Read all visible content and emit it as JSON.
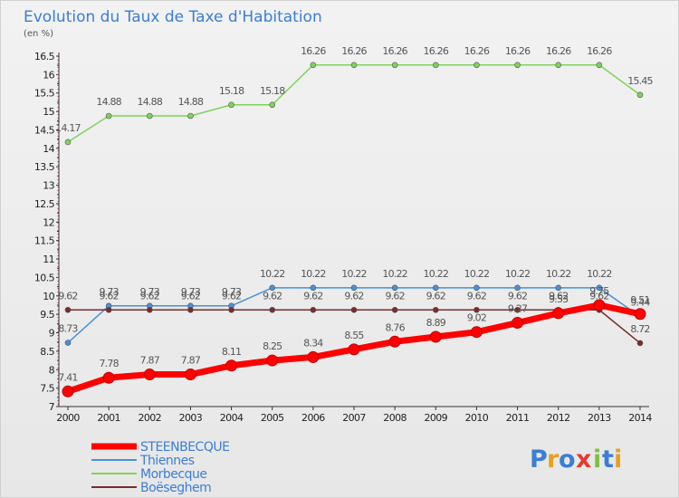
{
  "chart_data": {
    "type": "line",
    "title": "Evolution du Taux de Taxe d'Habitation",
    "subtitle": "(en %)",
    "x": [
      "2000",
      "2001",
      "2002",
      "2003",
      "2004",
      "2005",
      "2006",
      "2007",
      "2008",
      "2009",
      "2010",
      "2011",
      "2012",
      "2013",
      "2014"
    ],
    "ylim": [
      7,
      16.5
    ],
    "yticks": [
      "7",
      "7.5",
      "8",
      "8.5",
      "9",
      "9.5",
      "10",
      "10.5",
      "11",
      "11.5",
      "12",
      "12.5",
      "13",
      "13.5",
      "14",
      "14.5",
      "15",
      "15.5",
      "16",
      "16.5"
    ],
    "grid": false,
    "legend_position": "bottom-left",
    "series": [
      {
        "name": "STEENBECQUE",
        "color": "#ff0000",
        "values": [
          7.41,
          7.78,
          7.87,
          7.87,
          8.11,
          8.25,
          8.34,
          8.55,
          8.76,
          8.89,
          9.02,
          9.27,
          9.53,
          9.75,
          9.51
        ],
        "labels": [
          "7.41",
          "7.78",
          "7.87",
          "7.87",
          "8.11",
          "8.25",
          "8.34",
          "8.55",
          "8.76",
          "8.89",
          "9.02",
          "9.27",
          "9.53",
          "9.75",
          "9.51"
        ]
      },
      {
        "name": "Thiennes",
        "color": "#4a90d9",
        "values": [
          8.73,
          9.73,
          9.73,
          9.73,
          9.73,
          10.22,
          10.22,
          10.22,
          10.22,
          10.22,
          10.22,
          10.22,
          10.22,
          10.22,
          9.44
        ],
        "labels": [
          "8.73",
          "9.73",
          "9.73",
          "9.73",
          "9.73",
          "10.22",
          "10.22",
          "10.22",
          "10.22",
          "10.22",
          "10.22",
          "10.22",
          "10.22",
          "10.22",
          "9.44"
        ]
      },
      {
        "name": "Morbecque",
        "color": "#7fd35a",
        "values": [
          14.17,
          14.88,
          14.88,
          14.88,
          15.18,
          15.18,
          16.26,
          16.26,
          16.26,
          16.26,
          16.26,
          16.26,
          16.26,
          16.26,
          15.45
        ],
        "labels": [
          "14.17",
          "14.88",
          "14.88",
          "14.88",
          "15.18",
          "15.18",
          "16.26",
          "16.26",
          "16.26",
          "16.26",
          "16.26",
          "16.26",
          "16.26",
          "16.26",
          "15.45"
        ]
      },
      {
        "name": "Boëseghem",
        "color": "#7a2b2b",
        "values": [
          9.62,
          9.62,
          9.62,
          9.62,
          9.62,
          9.62,
          9.62,
          9.62,
          9.62,
          9.62,
          9.62,
          9.62,
          9.62,
          9.62,
          8.72
        ],
        "labels": [
          "9.62",
          "9.62",
          "9.62",
          "9.62",
          "9.62",
          "9.62",
          "9.62",
          "9.62",
          "9.62",
          "9.62",
          "9.62",
          "9.62",
          "9.62",
          "9.62",
          "8.72"
        ]
      }
    ]
  },
  "legend": [
    {
      "name": "STEENBECQUE",
      "color": "#ff0000"
    },
    {
      "name": "Thiennes",
      "color": "#4a90d9"
    },
    {
      "name": "Morbecque",
      "color": "#7fd35a"
    },
    {
      "name": "Boëseghem",
      "color": "#7a2b2b"
    }
  ],
  "brand": {
    "letters": [
      "P",
      "r",
      "o",
      "x",
      "i",
      "t",
      "i"
    ],
    "colors": [
      "#3a7ed6",
      "#e8a020",
      "#3a7ed6",
      "#e23b2e",
      "#7fc241",
      "#3a7ed6",
      "#e8a020"
    ]
  }
}
